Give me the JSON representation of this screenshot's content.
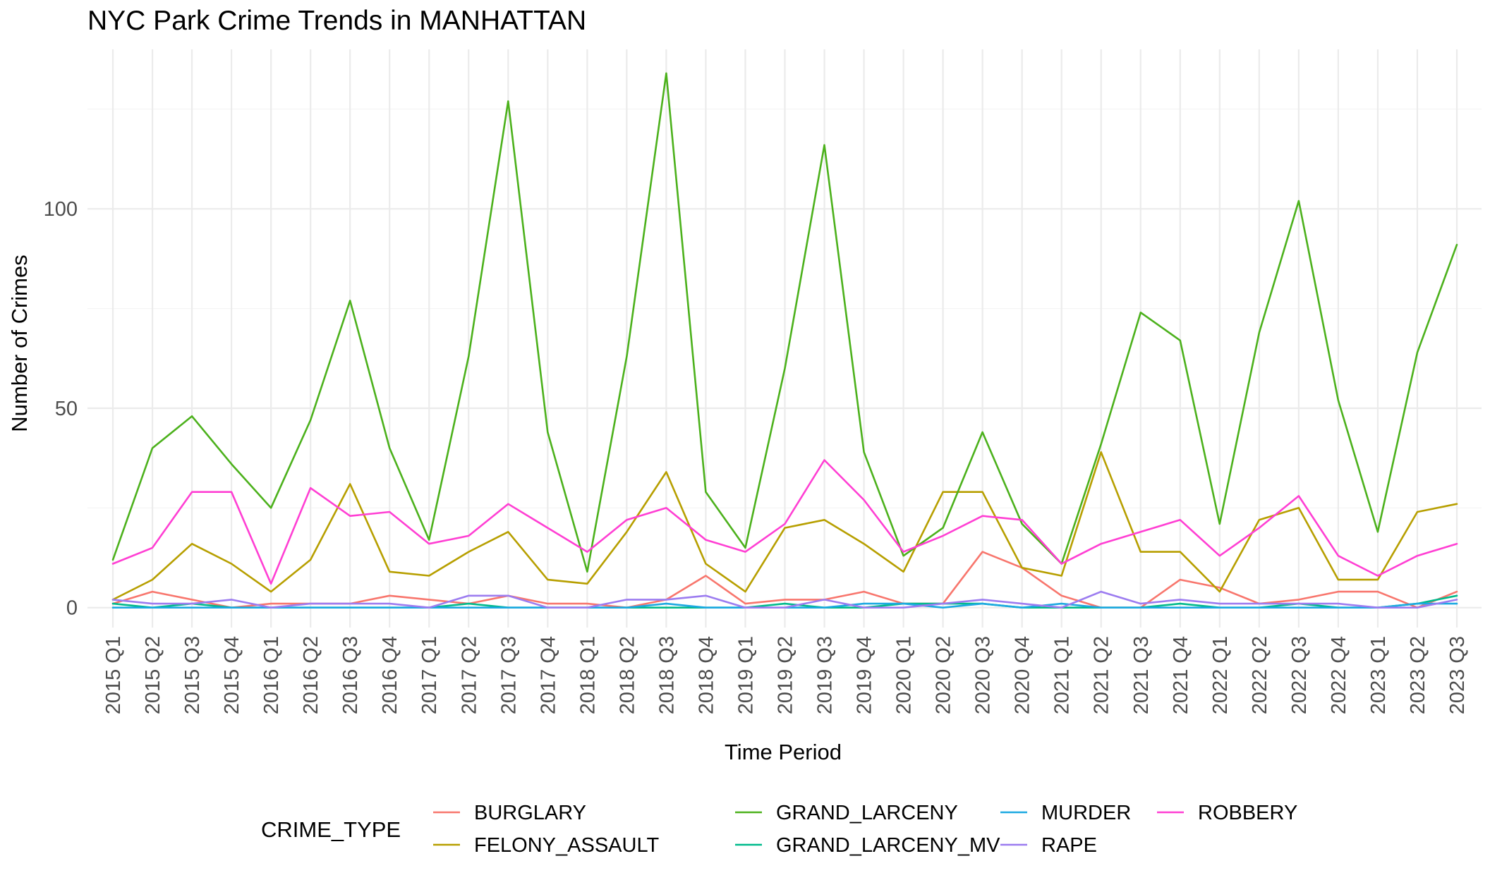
{
  "chart_data": {
    "type": "line",
    "title": "NYC Park Crime Trends in MANHATTAN",
    "xlabel": "Time Period",
    "ylabel": "Number of Crimes",
    "ylim": [
      -5,
      140
    ],
    "yticks": [
      0,
      50,
      100
    ],
    "grid": true,
    "legend_title": "CRIME_TYPE",
    "legend_position": "bottom",
    "categories": [
      "2015 Q1",
      "2015 Q2",
      "2015 Q3",
      "2015 Q4",
      "2016 Q1",
      "2016 Q2",
      "2016 Q3",
      "2016 Q4",
      "2017 Q1",
      "2017 Q2",
      "2017 Q3",
      "2017 Q4",
      "2018 Q1",
      "2018 Q2",
      "2018 Q3",
      "2018 Q4",
      "2019 Q1",
      "2019 Q2",
      "2019 Q3",
      "2019 Q4",
      "2020 Q1",
      "2020 Q2",
      "2020 Q3",
      "2020 Q4",
      "2021 Q1",
      "2021 Q2",
      "2021 Q3",
      "2021 Q4",
      "2022 Q1",
      "2022 Q2",
      "2022 Q3",
      "2022 Q4",
      "2023 Q1",
      "2023 Q2",
      "2023 Q3"
    ],
    "series": [
      {
        "name": "BURGLARY",
        "color": "#F8766D",
        "values": [
          1,
          4,
          2,
          0,
          1,
          1,
          1,
          3,
          2,
          1,
          3,
          1,
          1,
          0,
          2,
          8,
          1,
          2,
          2,
          4,
          1,
          1,
          14,
          10,
          3,
          0,
          0,
          7,
          5,
          1,
          2,
          4,
          4,
          0,
          4
        ]
      },
      {
        "name": "FELONY_ASSAULT",
        "color": "#B79F00",
        "values": [
          2,
          7,
          16,
          11,
          4,
          12,
          31,
          9,
          8,
          14,
          19,
          7,
          6,
          19,
          34,
          11,
          4,
          20,
          22,
          16,
          9,
          29,
          29,
          10,
          8,
          39,
          14,
          14,
          4,
          22,
          25,
          7,
          7,
          24,
          26
        ]
      },
      {
        "name": "GRAND_LARCENY",
        "color": "#4CB11C",
        "values": [
          12,
          40,
          48,
          36,
          25,
          47,
          77,
          40,
          17,
          63,
          127,
          44,
          9,
          63,
          134,
          29,
          15,
          60,
          116,
          39,
          13,
          20,
          44,
          21,
          11,
          41,
          74,
          67,
          21,
          69,
          102,
          52,
          19,
          64,
          91
        ]
      },
      {
        "name": "GRAND_LARCENY_MV",
        "color": "#00BA8C",
        "values": [
          1,
          0,
          1,
          0,
          0,
          0,
          0,
          0,
          0,
          1,
          0,
          0,
          0,
          0,
          0,
          0,
          0,
          1,
          0,
          0,
          1,
          1,
          1,
          0,
          0,
          0,
          0,
          1,
          0,
          0,
          1,
          0,
          0,
          1,
          3
        ]
      },
      {
        "name": "MURDER",
        "color": "#1CA9E1",
        "values": [
          0,
          0,
          0,
          0,
          0,
          0,
          0,
          0,
          0,
          0,
          0,
          0,
          0,
          0,
          1,
          0,
          0,
          0,
          0,
          1,
          1,
          0,
          1,
          0,
          1,
          0,
          0,
          0,
          0,
          0,
          0,
          0,
          0,
          1,
          1
        ]
      },
      {
        "name": "RAPE",
        "color": "#9C7CF0",
        "values": [
          2,
          1,
          1,
          2,
          0,
          1,
          1,
          1,
          0,
          3,
          3,
          0,
          0,
          2,
          2,
          3,
          0,
          0,
          2,
          0,
          0,
          1,
          2,
          1,
          0,
          4,
          1,
          2,
          1,
          1,
          1,
          1,
          0,
          0,
          2
        ]
      },
      {
        "name": "ROBBERY",
        "color": "#FF3FD3",
        "values": [
          11,
          15,
          29,
          29,
          6,
          30,
          23,
          24,
          16,
          18,
          26,
          20,
          14,
          22,
          25,
          17,
          14,
          21,
          37,
          27,
          14,
          18,
          23,
          22,
          11,
          16,
          19,
          22,
          13,
          20,
          28,
          13,
          8,
          13,
          16
        ]
      }
    ]
  }
}
